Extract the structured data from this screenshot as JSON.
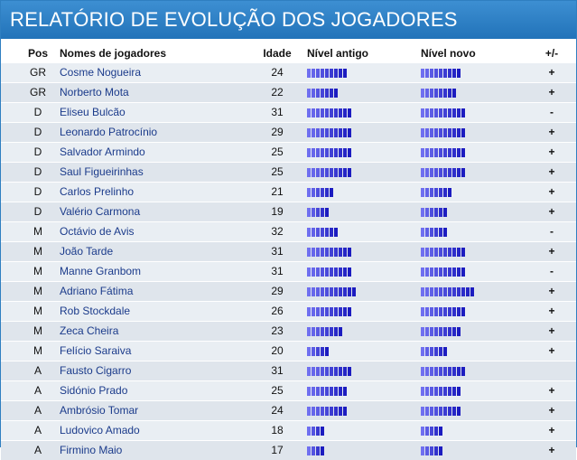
{
  "title": "RELATÓRIO DE EVOLUÇÃO DOS JOGADORES",
  "headers": {
    "pos": "Pos",
    "name": "Nomes de jogadores",
    "age": "Idade",
    "old": "Nível antigo",
    "new": "Nível novo",
    "diff": "+/-"
  },
  "colors": {
    "bar_light": "#6f6ff0",
    "bar_dark": "#1c1cc0",
    "title_bg": "#2a7fc6"
  },
  "players": [
    {
      "pos": "GR",
      "name": "Cosme Nogueira",
      "age": "24",
      "old_level": 9,
      "new_level": 9,
      "diff": "+"
    },
    {
      "pos": "GR",
      "name": "Norberto Mota",
      "age": "22",
      "old_level": 7,
      "new_level": 8,
      "diff": "+"
    },
    {
      "pos": "D",
      "name": "Eliseu Bulcão",
      "age": "31",
      "old_level": 10,
      "new_level": 10,
      "diff": "-"
    },
    {
      "pos": "D",
      "name": "Leonardo Patrocínio",
      "age": "29",
      "old_level": 10,
      "new_level": 10,
      "diff": "+"
    },
    {
      "pos": "D",
      "name": "Salvador Armindo",
      "age": "25",
      "old_level": 10,
      "new_level": 10,
      "diff": "+"
    },
    {
      "pos": "D",
      "name": "Saul Figueirinhas",
      "age": "25",
      "old_level": 10,
      "new_level": 10,
      "diff": "+"
    },
    {
      "pos": "D",
      "name": "Carlos Prelinho",
      "age": "21",
      "old_level": 6,
      "new_level": 7,
      "diff": "+"
    },
    {
      "pos": "D",
      "name": "Valério Carmona",
      "age": "19",
      "old_level": 5,
      "new_level": 6,
      "diff": "+"
    },
    {
      "pos": "M",
      "name": "Octávio de Avis",
      "age": "32",
      "old_level": 7,
      "new_level": 6,
      "diff": "-"
    },
    {
      "pos": "M",
      "name": "João Tarde",
      "age": "31",
      "old_level": 10,
      "new_level": 10,
      "diff": "+"
    },
    {
      "pos": "M",
      "name": "Manne Granbom",
      "age": "31",
      "old_level": 10,
      "new_level": 10,
      "diff": "-"
    },
    {
      "pos": "M",
      "name": "Adriano Fátima",
      "age": "29",
      "old_level": 11,
      "new_level": 12,
      "diff": "+"
    },
    {
      "pos": "M",
      "name": "Rob Stockdale",
      "age": "26",
      "old_level": 10,
      "new_level": 10,
      "diff": "+"
    },
    {
      "pos": "M",
      "name": "Zeca Cheira",
      "age": "23",
      "old_level": 8,
      "new_level": 9,
      "diff": "+"
    },
    {
      "pos": "M",
      "name": "Felício Saraiva",
      "age": "20",
      "old_level": 5,
      "new_level": 6,
      "diff": "+"
    },
    {
      "pos": "A",
      "name": "Fausto Cigarro",
      "age": "31",
      "old_level": 10,
      "new_level": 10,
      "diff": ""
    },
    {
      "pos": "A",
      "name": "Sidónio Prado",
      "age": "25",
      "old_level": 9,
      "new_level": 9,
      "diff": "+"
    },
    {
      "pos": "A",
      "name": "Ambrósio Tomar",
      "age": "24",
      "old_level": 9,
      "new_level": 9,
      "diff": "+"
    },
    {
      "pos": "A",
      "name": "Ludovico Amado",
      "age": "18",
      "old_level": 4,
      "new_level": 5,
      "diff": "+"
    },
    {
      "pos": "A",
      "name": "Firmino Maio",
      "age": "17",
      "old_level": 4,
      "new_level": 5,
      "diff": "+"
    }
  ]
}
